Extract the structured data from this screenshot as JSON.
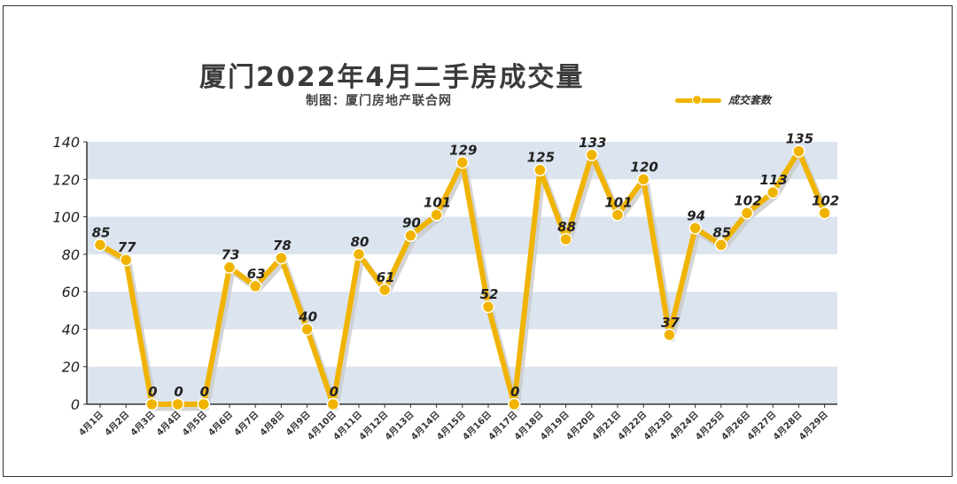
{
  "colors": {
    "line": "#f0b400",
    "shadow": "#c9c9c9",
    "band": "#dbe4ef",
    "axis": "#333333"
  },
  "header": {
    "title": "厦门2022年4月二手房成交量",
    "subtitle": "制图：厦门房地产联合网"
  },
  "legend": {
    "label": "成交套数",
    "position": "top-right"
  },
  "chart_data": {
    "type": "line",
    "title": "厦门2022年4月二手房成交量",
    "subtitle": "制图：厦门房地产联合网",
    "xlabel": "",
    "ylabel": "",
    "ylim": [
      0,
      140
    ],
    "yticks": [
      0,
      20,
      40,
      60,
      80,
      100,
      120,
      140
    ],
    "grid": "horizontal bands",
    "legend_position": "top-right",
    "categories": [
      "4月1日",
      "4月2日",
      "4月3日",
      "4月4日",
      "4月5日",
      "4月6日",
      "4月7日",
      "4月8日",
      "4月9日",
      "4月10日",
      "4月11日",
      "4月12日",
      "4月13日",
      "4月14日",
      "4月15日",
      "4月16日",
      "4月17日",
      "4月18日",
      "4月19日",
      "4月20日",
      "4月21日",
      "4月22日",
      "4月23日",
      "4月24日",
      "4月25日",
      "4月26日",
      "4月27日",
      "4月28日",
      "4月29日"
    ],
    "series": [
      {
        "name": "成交套数",
        "values": [
          85,
          77,
          0,
          0,
          0,
          73,
          63,
          78,
          40,
          0,
          80,
          61,
          90,
          101,
          129,
          52,
          0,
          125,
          88,
          133,
          101,
          120,
          37,
          94,
          85,
          102,
          113,
          135,
          102
        ]
      }
    ]
  }
}
